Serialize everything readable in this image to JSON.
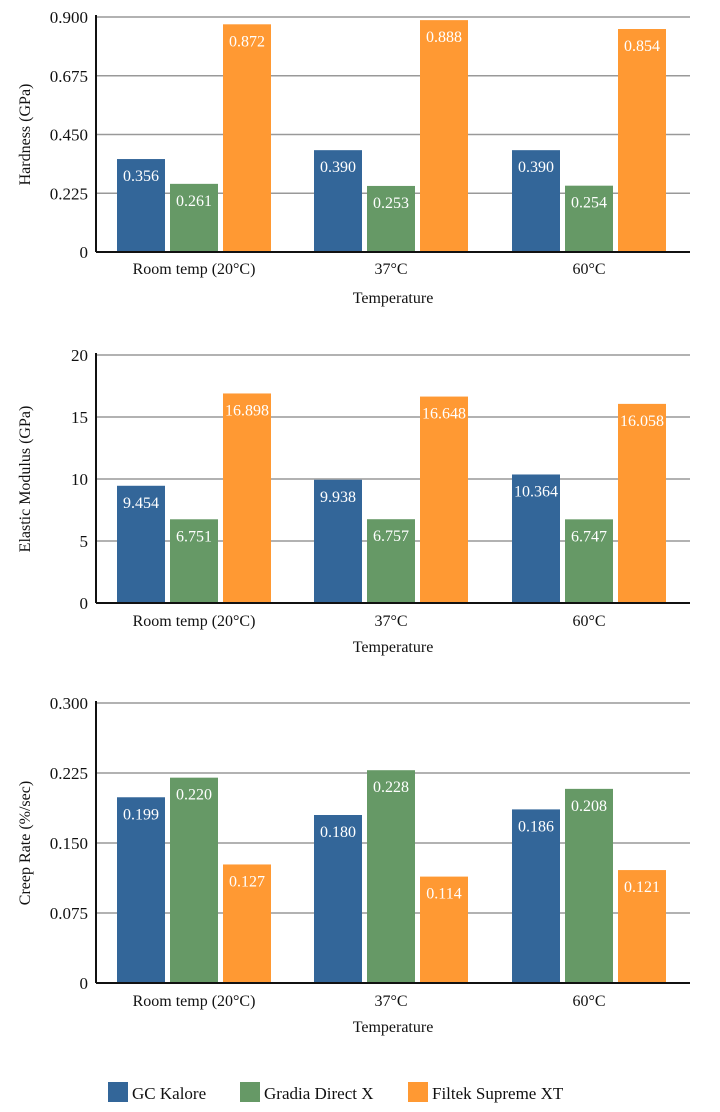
{
  "colors": {
    "GC Kalore": "#336699",
    "Gradia Direct X": "#669966",
    "Filtek Supreme XT": "#FF9933"
  },
  "legend": [
    "GC Kalore",
    "Gradia Direct X",
    "Filtek Supreme XT"
  ],
  "chart_data": [
    {
      "type": "bar",
      "ylabel": "Hardness (GPa)",
      "xlabel": "Temperature",
      "categories": [
        "Room temp (20°C)",
        "37°C",
        "60°C"
      ],
      "ylim": [
        0,
        0.9
      ],
      "yticks": [
        "0",
        "0.225",
        "0.450",
        "0.675",
        "0.900"
      ],
      "grid": true,
      "series": [
        {
          "name": "GC Kalore",
          "values": [
            0.356,
            0.39,
            0.39
          ],
          "labels": [
            "0.356",
            "0.390",
            "0.390"
          ]
        },
        {
          "name": "Gradia Direct X",
          "values": [
            0.261,
            0.253,
            0.254
          ],
          "labels": [
            "0.261",
            "0.253",
            "0.254"
          ]
        },
        {
          "name": "Filtek Supreme XT",
          "values": [
            0.872,
            0.888,
            0.854
          ],
          "labels": [
            "0.872",
            "0.888",
            "0.854"
          ]
        }
      ]
    },
    {
      "type": "bar",
      "ylabel": "Elastic Modulus (GPa)",
      "xlabel": "Temperature",
      "categories": [
        "Room temp (20°C)",
        "37°C",
        "60°C"
      ],
      "ylim": [
        0,
        20
      ],
      "yticks": [
        "0",
        "5",
        "10",
        "15",
        "20"
      ],
      "grid": true,
      "series": [
        {
          "name": "GC Kalore",
          "values": [
            9.454,
            9.938,
            10.364
          ],
          "labels": [
            "9.454",
            "9.938",
            "10.364"
          ]
        },
        {
          "name": "Gradia Direct X",
          "values": [
            6.751,
            6.757,
            6.747
          ],
          "labels": [
            "6.751",
            "6.757",
            "6.747"
          ]
        },
        {
          "name": "Filtek Supreme XT",
          "values": [
            16.898,
            16.648,
            16.058
          ],
          "labels": [
            "16.898",
            "16.648",
            "16.058"
          ]
        }
      ]
    },
    {
      "type": "bar",
      "ylabel": "Creep Rate (%/sec)",
      "xlabel": "Temperature",
      "categories": [
        "Room temp (20°C)",
        "37°C",
        "60°C"
      ],
      "ylim": [
        0,
        0.3
      ],
      "yticks": [
        "0",
        "0.075",
        "0.150",
        "0.225",
        "0.300"
      ],
      "grid": true,
      "series": [
        {
          "name": "GC Kalore",
          "values": [
            0.199,
            0.18,
            0.186
          ],
          "labels": [
            "0.199",
            "0.180",
            "0.186"
          ]
        },
        {
          "name": "Gradia Direct X",
          "values": [
            0.22,
            0.228,
            0.208
          ],
          "labels": [
            "0.220",
            "0.228",
            "0.208"
          ]
        },
        {
          "name": "Filtek Supreme XT",
          "values": [
            0.127,
            0.114,
            0.121
          ],
          "labels": [
            "0.127",
            "0.114",
            "0.121"
          ]
        }
      ]
    }
  ]
}
